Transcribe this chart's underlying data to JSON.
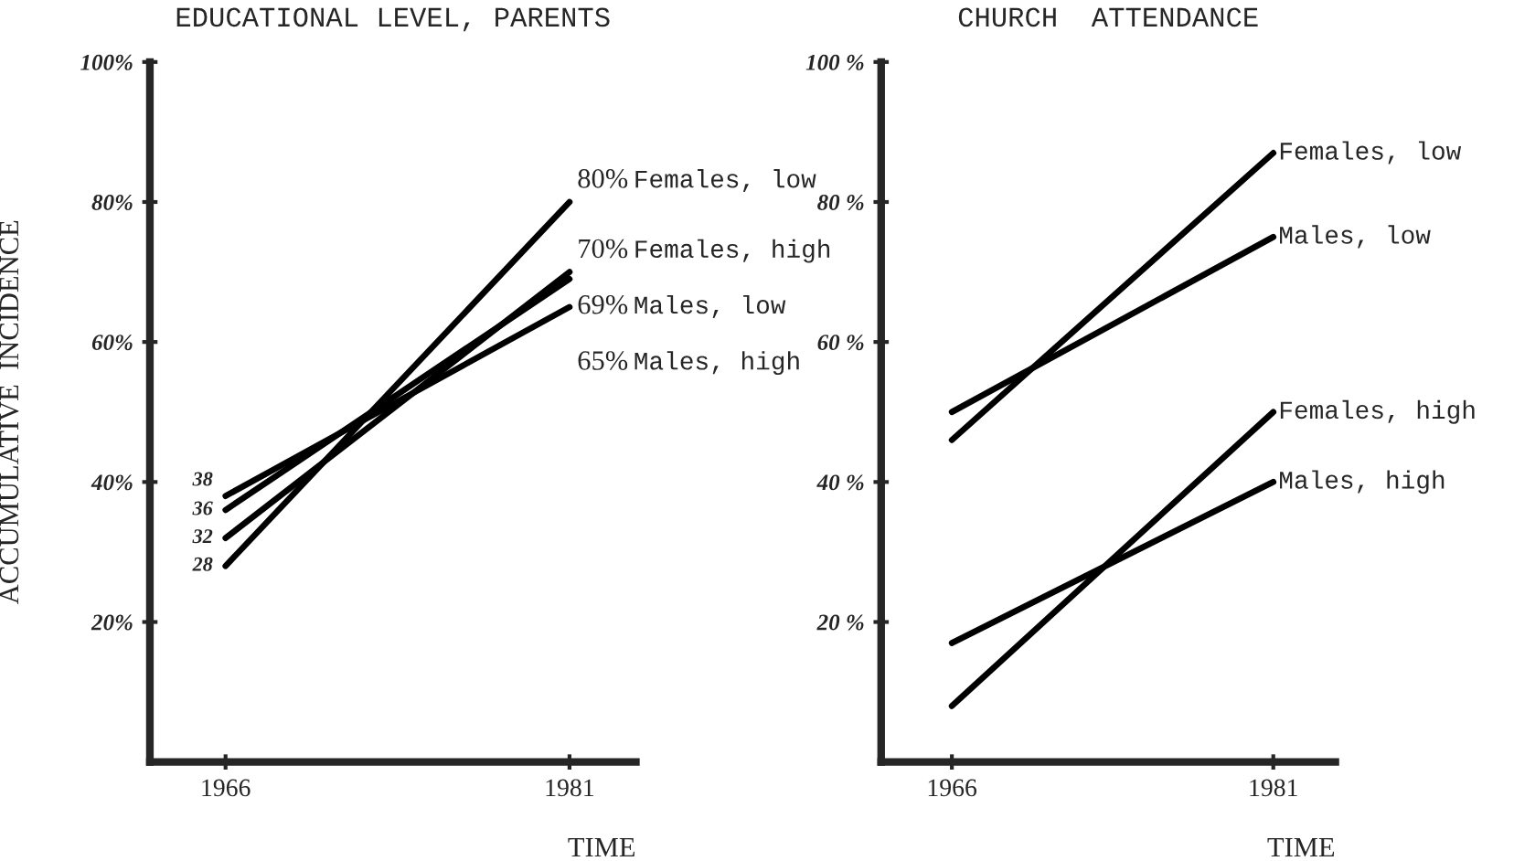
{
  "chart_data": [
    {
      "type": "line",
      "title": "EDUCATIONAL LEVEL, PARENTS",
      "xlabel": "TIME",
      "ylabel": "ACCUMULATIVE  INCIDENCE",
      "categories": [
        "1966",
        "1981"
      ],
      "ylim": [
        0,
        100
      ],
      "yticks": [
        {
          "value": 20,
          "label": "20%"
        },
        {
          "value": 40,
          "label": "40%"
        },
        {
          "value": 60,
          "label": "60%"
        },
        {
          "value": 80,
          "label": "80%"
        },
        {
          "value": 100,
          "label": "100%"
        }
      ],
      "grid": false,
      "legend": false,
      "marker": "none",
      "line_style": "solid",
      "series": [
        {
          "name": "Females, low",
          "color": "#000000",
          "values": [
            28,
            80
          ],
          "value_labels": [
            "28",
            "80%"
          ]
        },
        {
          "name": "Females, high",
          "color": "#000000",
          "values": [
            32,
            70
          ],
          "value_labels": [
            "32",
            "70%"
          ]
        },
        {
          "name": "Males, low",
          "color": "#000000",
          "values": [
            36,
            69
          ],
          "value_labels": [
            "36",
            "69%"
          ]
        },
        {
          "name": "Males, high",
          "color": "#000000",
          "values": [
            38,
            65
          ],
          "value_labels": [
            "38",
            "65%"
          ]
        }
      ]
    },
    {
      "type": "line",
      "title": "CHURCH  ATTENDANCE",
      "xlabel": "TIME",
      "categories": [
        "1966",
        "1981"
      ],
      "ylim": [
        0,
        100
      ],
      "yticks": [
        {
          "value": 20,
          "label": "20 %"
        },
        {
          "value": 40,
          "label": "40 %"
        },
        {
          "value": 60,
          "label": "60 %"
        },
        {
          "value": 80,
          "label": "80 %"
        },
        {
          "value": 100,
          "label": "100 %"
        }
      ],
      "grid": false,
      "legend": false,
      "marker": "none",
      "line_style": "solid",
      "series": [
        {
          "name": "Females, low",
          "color": "#000000",
          "values": [
            46,
            87
          ]
        },
        {
          "name": "Males, low",
          "color": "#000000",
          "values": [
            50,
            75
          ]
        },
        {
          "name": "Females, high",
          "color": "#000000",
          "values": [
            8,
            50
          ]
        },
        {
          "name": "Males, high",
          "color": "#000000",
          "values": [
            17,
            40
          ]
        }
      ]
    }
  ]
}
